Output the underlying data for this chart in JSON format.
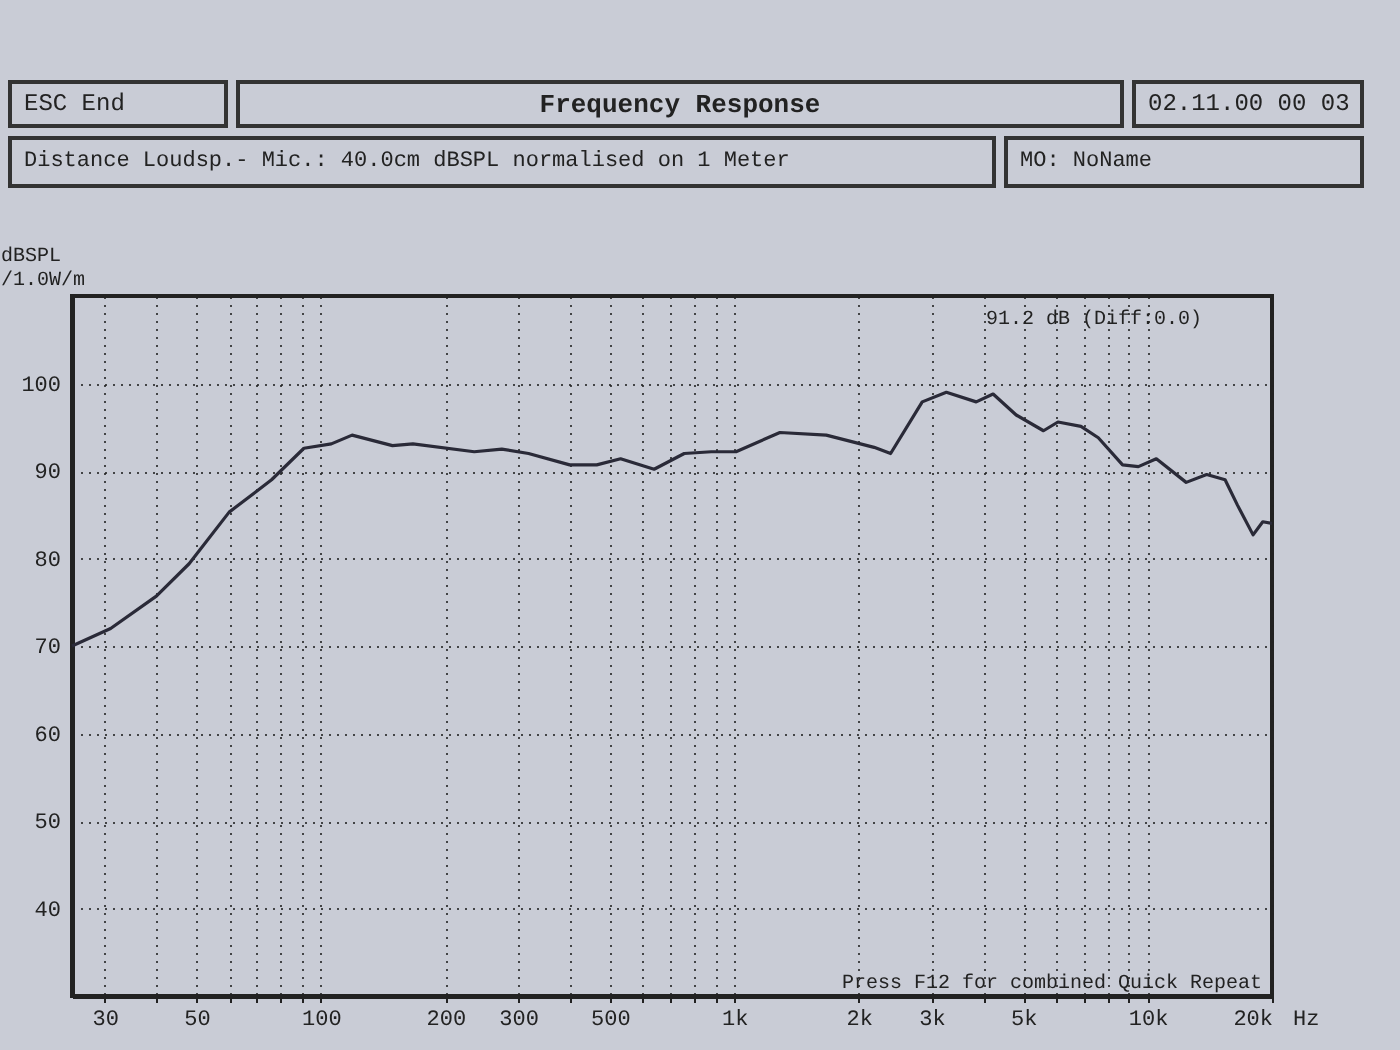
{
  "chart_data": {
    "type": "line",
    "title": "Frequency Response",
    "subtitle": "Distance Loudsp.- Mic.: 40.0cm dBSPL normalised on 1 Meter",
    "ylabel": "dBSPL /1.0W/m",
    "annotations": [
      "ESC End",
      "02.11.00 00 03",
      "MO: NoName",
      "91.2 dB (Diff:0.0)",
      "Press F12 for combined Quick Repeat"
    ],
    "log": "x",
    "grid": true,
    "line_style": "solid",
    "xlim": [
      25,
      20000
    ],
    "ylim": [
      30,
      110
    ],
    "xticks": [
      {
        "value": 30,
        "label": "30"
      },
      {
        "value": 40,
        "label": null
      },
      {
        "value": 50,
        "label": "50"
      },
      {
        "value": 60,
        "label": null
      },
      {
        "value": 70,
        "label": null
      },
      {
        "value": 80,
        "label": null
      },
      {
        "value": 90,
        "label": null
      },
      {
        "value": 100,
        "label": "100"
      },
      {
        "value": 200,
        "label": "200"
      },
      {
        "value": 300,
        "label": "300"
      },
      {
        "value": 400,
        "label": null
      },
      {
        "value": 500,
        "label": "500"
      },
      {
        "value": 600,
        "label": null
      },
      {
        "value": 700,
        "label": null
      },
      {
        "value": 800,
        "label": null
      },
      {
        "value": 900,
        "label": null
      },
      {
        "value": 1000,
        "label": "1k"
      },
      {
        "value": 2000,
        "label": "2k"
      },
      {
        "value": 3000,
        "label": "3k"
      },
      {
        "value": 4000,
        "label": null
      },
      {
        "value": 5000,
        "label": "5k"
      },
      {
        "value": 6000,
        "label": null
      },
      {
        "value": 7000,
        "label": null
      },
      {
        "value": 8000,
        "label": null
      },
      {
        "value": 9000,
        "label": null
      },
      {
        "value": 10000,
        "label": "10k"
      },
      {
        "value": 20000,
        "label": "20k"
      }
    ],
    "xlabel": "Hz",
    "yticks": [
      40,
      50,
      60,
      70,
      80,
      90,
      100
    ],
    "x": [
      25,
      31,
      40,
      48,
      60,
      76,
      91,
      106,
      119,
      149,
      167,
      235,
      274,
      318,
      400,
      465,
      531,
      640,
      757,
      880,
      1010,
      1290,
      1670,
      2180,
      2390,
      2850,
      3260,
      3850,
      4230,
      4810,
      5600,
      6070,
      6900,
      7600,
      8700,
      9500,
      10500,
      12400,
      13900,
      15400,
      16500,
      18000,
      19000,
      20000
    ],
    "series": [
      {
        "color": "#2a2a38",
        "values": [
          70,
          72,
          75.7,
          79.4,
          85.3,
          89,
          92.6,
          93.1,
          94.1,
          92.9,
          93.1,
          92.2,
          92.5,
          92,
          90.7,
          90.7,
          91.4,
          90.2,
          92,
          92.2,
          92.2,
          94.4,
          94.1,
          92.7,
          92,
          97.9,
          99,
          97.9,
          98.8,
          96.4,
          94.6,
          95.6,
          95.1,
          93.8,
          90.7,
          90.5,
          91.4,
          88.7,
          89.6,
          89,
          86.1,
          82.7,
          84.2,
          84
        ]
      }
    ]
  }
}
